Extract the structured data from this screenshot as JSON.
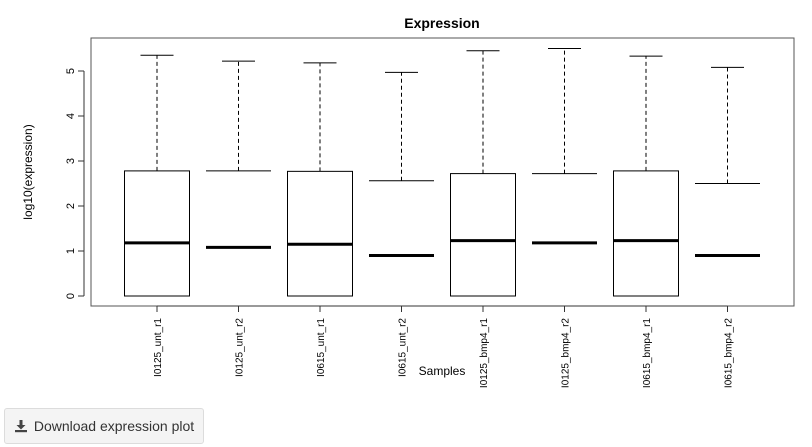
{
  "download_button": {
    "label": "Download expression plot",
    "icon": "download-icon"
  },
  "chart_data": {
    "type": "boxplot",
    "title": "Expression",
    "xlabel": "Samples",
    "ylabel": "log10(expression)",
    "ylim": [
      -0.25,
      5.7
    ],
    "yticks": [
      0,
      1,
      2,
      3,
      4,
      5
    ],
    "categories": [
      "I0125_unt_r1",
      "I0125_unt_r2",
      "I0615_unt_r1",
      "I0615_unt_r2",
      "I0125_bmp4_r1",
      "I0125_bmp4_r2",
      "I0615_bmp4_r1",
      "I0615_bmp4_r2"
    ],
    "boxes": [
      {
        "min": 0,
        "q1": 0,
        "median": 1.18,
        "q3": 2.78,
        "max": 5.35
      },
      {
        "min": 0,
        "q1": 0,
        "median": 1.08,
        "q3": 2.78,
        "max": 5.22
      },
      {
        "min": 0,
        "q1": 0,
        "median": 1.15,
        "q3": 2.77,
        "max": 5.18
      },
      {
        "min": 0,
        "q1": 0,
        "median": 0.9,
        "q3": 2.56,
        "max": 4.97
      },
      {
        "min": 0,
        "q1": 0,
        "median": 1.23,
        "q3": 2.72,
        "max": 5.45
      },
      {
        "min": 0,
        "q1": 0,
        "median": 1.18,
        "q3": 2.72,
        "max": 5.5
      },
      {
        "min": 0,
        "q1": 0,
        "median": 1.23,
        "q3": 2.78,
        "max": 5.33
      },
      {
        "min": 0,
        "q1": 0,
        "median": 0.9,
        "q3": 2.5,
        "max": 5.08
      }
    ]
  }
}
